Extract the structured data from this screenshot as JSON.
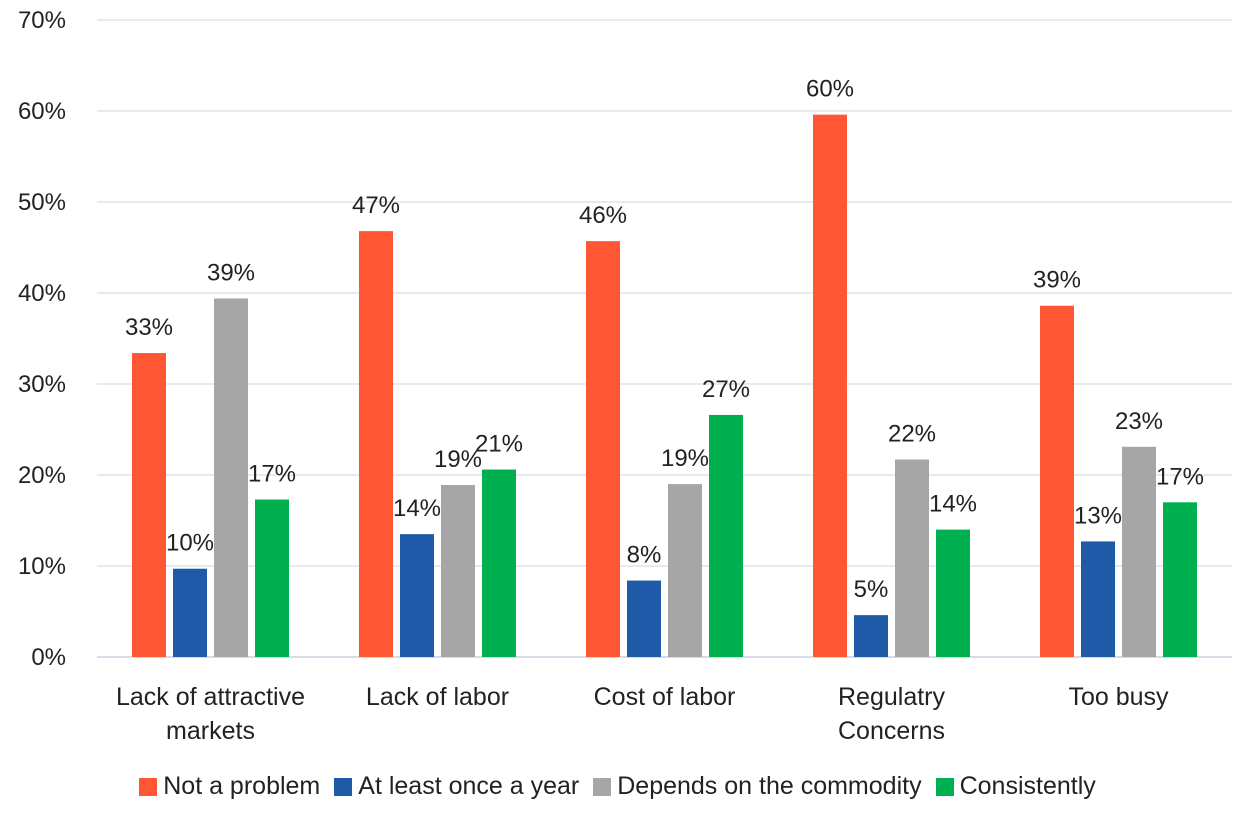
{
  "chart_data": {
    "type": "bar",
    "title": "",
    "xlabel": "",
    "ylabel": "",
    "ylim": [
      0,
      70
    ],
    "yticks": [
      0,
      10,
      20,
      30,
      40,
      50,
      60,
      70
    ],
    "ytick_format": "{v}%",
    "grid": true,
    "legend_position": "bottom",
    "categories": [
      [
        "Lack of attractive",
        "markets"
      ],
      [
        "Lack of labor"
      ],
      [
        "Cost of labor"
      ],
      [
        "Regulatry",
        "Concerns"
      ],
      [
        "Too busy"
      ]
    ],
    "series": [
      {
        "name": "Not a problem",
        "color": "#ff5733",
        "values": [
          33.4,
          46.8,
          45.7,
          59.6,
          38.6
        ],
        "labels": [
          "33%",
          "47%",
          "46%",
          "60%",
          "39%"
        ]
      },
      {
        "name": "At least once a year",
        "color": "#1f5aa8",
        "values": [
          9.7,
          13.5,
          8.4,
          4.6,
          12.7
        ],
        "labels": [
          "10%",
          "14%",
          "8%",
          "5%",
          "13%"
        ]
      },
      {
        "name": "Depends on the commodity",
        "color": "#a6a6a6",
        "values": [
          39.4,
          18.9,
          19.0,
          21.7,
          23.1
        ],
        "labels": [
          "39%",
          "19%",
          "19%",
          "22%",
          "23%"
        ]
      },
      {
        "name": "Consistently",
        "color": "#00b050",
        "values": [
          17.3,
          20.6,
          26.6,
          14.0,
          17.0
        ],
        "labels": [
          "17%",
          "21%",
          "27%",
          "14%",
          "17%"
        ]
      }
    ]
  }
}
